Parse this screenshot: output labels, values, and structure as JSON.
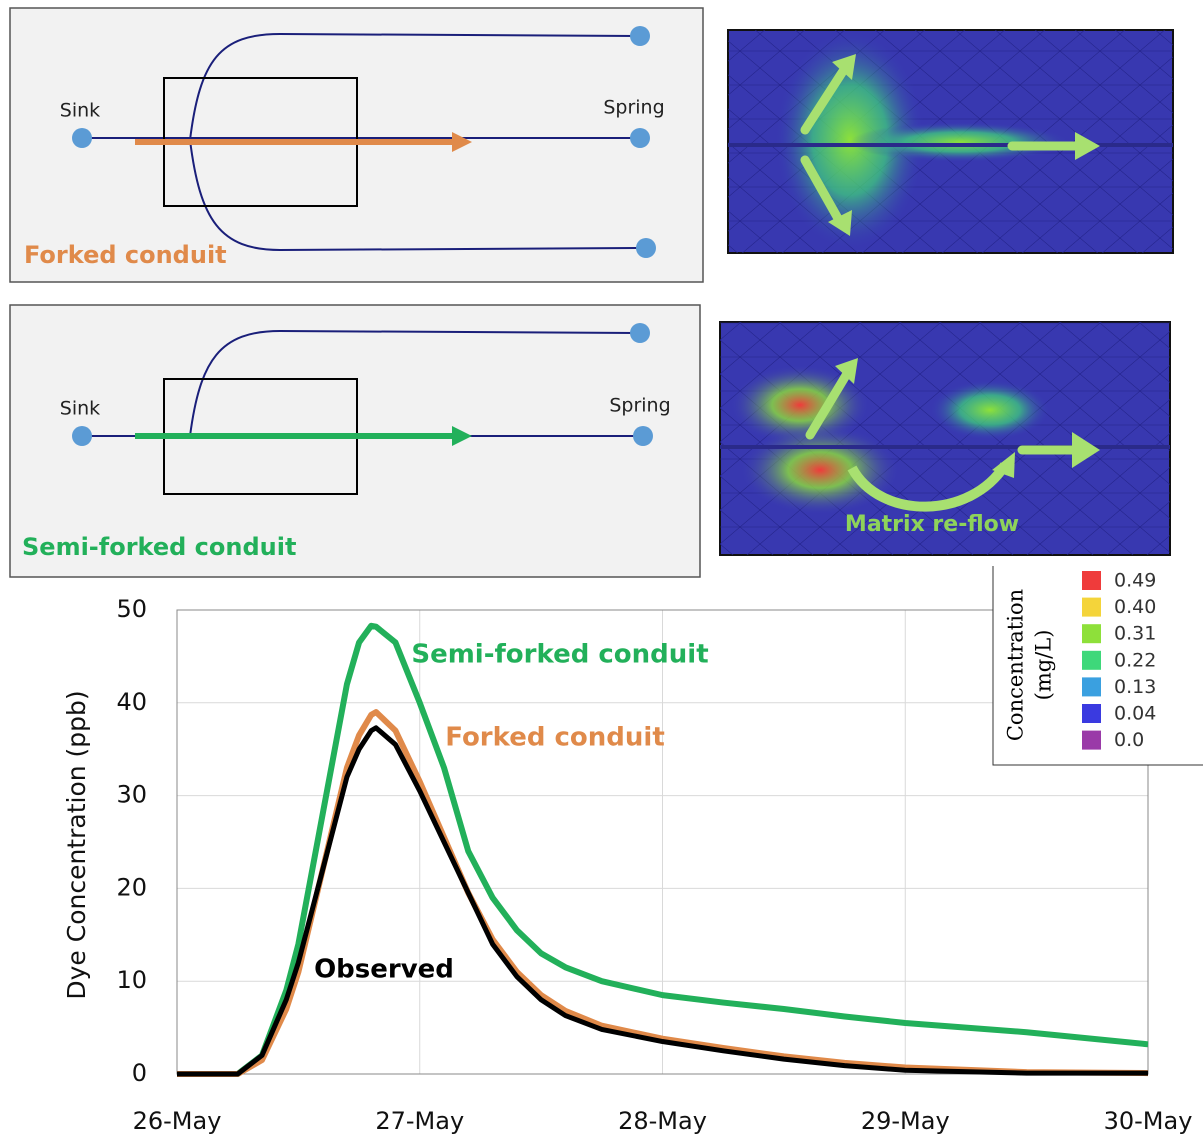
{
  "panels": [
    {
      "sink": "Sink",
      "spring": "Spring",
      "title": "Forked conduit"
    },
    {
      "sink": "Sink",
      "spring": "Spring",
      "title": "Semi-forked conduit"
    }
  ],
  "mesh_annotation": "Matrix re-flow",
  "colorbar": {
    "title_lines": [
      "Concentration",
      "(mg/L)"
    ],
    "entries": [
      {
        "label": "0.49",
        "color": "#ef3b3b"
      },
      {
        "label": "0.40",
        "color": "#f4d43a"
      },
      {
        "label": "0.31",
        "color": "#8ee03a"
      },
      {
        "label": "0.22",
        "color": "#3ed87a"
      },
      {
        "label": "0.13",
        "color": "#3aa0e0"
      },
      {
        "label": "0.04",
        "color": "#3a3ae0"
      },
      {
        "label": "0.0",
        "color": "#9a3aa8"
      }
    ]
  },
  "chart_data": {
    "type": "line",
    "y_label": "Dye Concentration (ppb)",
    "x": [
      26.0,
      26.25,
      26.35,
      26.45,
      26.5,
      26.6,
      26.7,
      26.75,
      26.8,
      26.82,
      26.9,
      27.0,
      27.1,
      27.2,
      27.3,
      27.4,
      27.5,
      27.6,
      27.75,
      28.0,
      28.25,
      28.5,
      28.75,
      29.0,
      29.5,
      30.0
    ],
    "series": [
      {
        "name": "Semi-forked conduit",
        "color": "#22b05a",
        "values": [
          0,
          0,
          2,
          9,
          14,
          28,
          42,
          46.5,
          48.3,
          48.2,
          46.5,
          40,
          33,
          24,
          19,
          15.5,
          13,
          11.5,
          10,
          8.5,
          7.7,
          7,
          6.2,
          5.5,
          4.5,
          3.2
        ]
      },
      {
        "name": "Forked conduit",
        "color": "#e08a4a",
        "values": [
          0,
          0,
          1.5,
          7,
          11,
          22,
          33,
          36.5,
          38.7,
          39,
          37,
          31.5,
          25.5,
          19.5,
          14.5,
          11,
          8.5,
          6.8,
          5.2,
          3.8,
          2.8,
          1.9,
          1.2,
          0.7,
          0.2,
          0.1
        ]
      },
      {
        "name": "Observed",
        "color": "#000000",
        "values": [
          0,
          0,
          2,
          8,
          12,
          22,
          32,
          35,
          37,
          37.3,
          35.5,
          30.5,
          25,
          19.5,
          14,
          10.5,
          8,
          6.3,
          4.8,
          3.5,
          2.5,
          1.6,
          0.9,
          0.4,
          0.1,
          0.1
        ]
      }
    ],
    "xlim": [
      26,
      30
    ],
    "xticks": [
      {
        "value": 26,
        "label": "26-May"
      },
      {
        "value": 27,
        "label": "27-May"
      },
      {
        "value": 28,
        "label": "28-May"
      },
      {
        "value": 29,
        "label": "29-May"
      },
      {
        "value": 30,
        "label": "30-May"
      }
    ],
    "ylim": [
      0,
      50
    ],
    "yticks": [
      0,
      10,
      20,
      30,
      40,
      50
    ],
    "grid": true
  }
}
